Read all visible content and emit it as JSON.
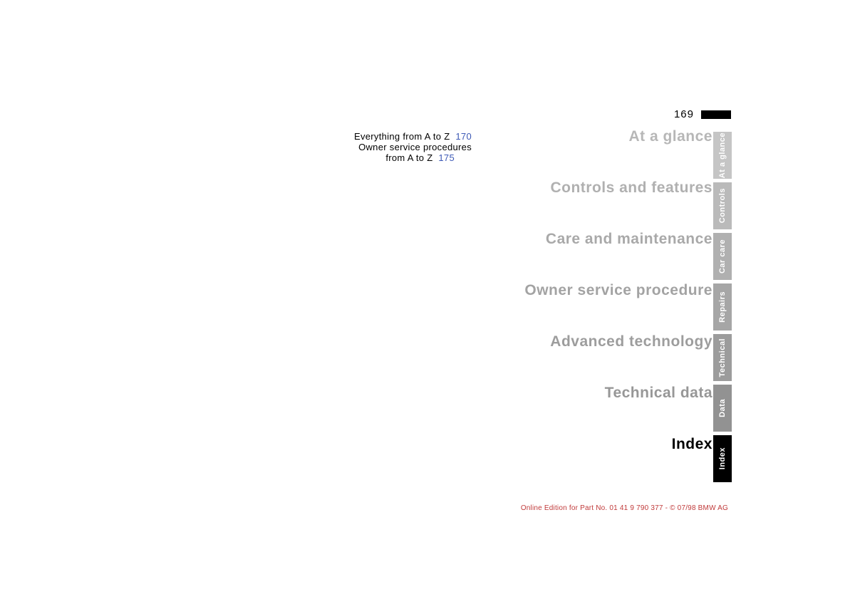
{
  "page_number": "169",
  "index_entries": [
    {
      "text": "Everything from A to Z",
      "page_ref": "170"
    },
    {
      "text_line1": "Owner service procedures",
      "text_line2": "from A to Z",
      "page_ref": "175"
    }
  ],
  "sections": [
    {
      "label": "At a glance",
      "color": "#b7b7b7"
    },
    {
      "label": "Controls and features",
      "color": "#b0b0b0"
    },
    {
      "label": "Care and maintenance",
      "color": "#a9a9a9"
    },
    {
      "label": "Owner service procedure",
      "color": "#a3a3a3"
    },
    {
      "label": "Advanced technology",
      "color": "#9d9d9d"
    },
    {
      "label": "Technical data",
      "color": "#979797"
    },
    {
      "label": "Index",
      "color": "#000000"
    }
  ],
  "tabs": [
    {
      "label": "At a glance",
      "bg": "#c5c5c5",
      "fg": "#ffffff"
    },
    {
      "label": "Controls",
      "bg": "#bababa",
      "fg": "#ffffff"
    },
    {
      "label": "Car care",
      "bg": "#b0b0b0",
      "fg": "#ffffff"
    },
    {
      "label": "Repairs",
      "bg": "#a6a6a6",
      "fg": "#ffffff"
    },
    {
      "label": "Technical",
      "bg": "#9c9c9c",
      "fg": "#ffffff"
    },
    {
      "label": "Data",
      "bg": "#929292",
      "fg": "#ffffff"
    },
    {
      "label": "Index",
      "bg": "#000000",
      "fg": "#ffffff"
    }
  ],
  "footer": {
    "text": "Online Edition for Part No. 01 41 9 790 377 - © 07/98 BMW AG",
    "color": "#c03a3a"
  },
  "colors": {
    "link": "#3e5ab6",
    "text": "#000000",
    "background": "#ffffff"
  }
}
